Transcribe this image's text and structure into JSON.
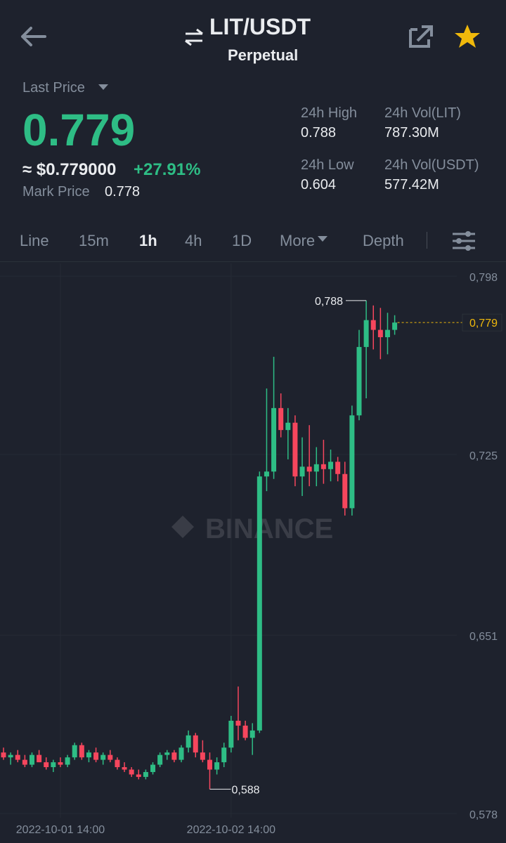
{
  "header": {
    "pair": "LIT/USDT",
    "subtitle": "Perpetual"
  },
  "summary": {
    "last_price_label": "Last Price",
    "last_price": "0.779",
    "usd_price": "≈ $0.779000",
    "change": "+27.91%",
    "mark_price_label": "Mark Price",
    "mark_price": "0.778",
    "stats": [
      {
        "label": "24h High",
        "value": "0.788"
      },
      {
        "label": "24h Vol(LIT)",
        "value": "787.30M"
      },
      {
        "label": "24h Low",
        "value": "0.604"
      },
      {
        "label": "24h Vol(USDT)",
        "value": "577.42M"
      }
    ]
  },
  "tabs": [
    "Line",
    "15m",
    "1h",
    "4h",
    "1D",
    "More",
    "Depth"
  ],
  "active_tab": "1h",
  "watermark": "BINANCE",
  "chart_data": {
    "type": "candlestick",
    "up_color": "#2ebd85",
    "down_color": "#f6465d",
    "categories": [
      null,
      null,
      null,
      null,
      null,
      null,
      null,
      null,
      "2022-10-01 14:00",
      null,
      null,
      null,
      null,
      null,
      null,
      null,
      null,
      null,
      null,
      null,
      null,
      null,
      null,
      null,
      null,
      null,
      null,
      null,
      null,
      null,
      null,
      null,
      "2022-10-02 14:00",
      null,
      null,
      null,
      null,
      null,
      null,
      null,
      null,
      null,
      null,
      null,
      null,
      null,
      null,
      null,
      null,
      null,
      null,
      null,
      null,
      null,
      null,
      null
    ],
    "open": [
      0.603,
      0.601,
      0.602,
      0.6,
      0.598,
      0.602,
      0.599,
      0.597,
      0.599,
      0.598,
      0.601,
      0.606,
      0.601,
      0.603,
      0.6,
      0.602,
      0.6,
      0.597,
      0.596,
      0.594,
      0.593,
      0.595,
      0.598,
      0.602,
      0.603,
      0.6,
      0.605,
      0.61,
      0.603,
      0.6,
      0.596,
      0.599,
      0.605,
      0.616,
      0.614,
      0.609,
      0.612,
      0.716,
      0.718,
      0.744,
      0.735,
      0.738,
      0.716,
      0.72,
      0.718,
      0.721,
      0.719,
      0.722,
      0.717,
      0.703,
      0.741,
      0.769,
      0.78,
      0.776,
      0.773,
      0.776
    ],
    "high": [
      0.605,
      0.603,
      0.604,
      0.602,
      0.603,
      0.604,
      0.601,
      0.6,
      0.601,
      0.602,
      0.607,
      0.607,
      0.604,
      0.605,
      0.603,
      0.604,
      0.601,
      0.599,
      0.597,
      0.596,
      0.596,
      0.599,
      0.603,
      0.604,
      0.604,
      0.606,
      0.612,
      0.611,
      0.608,
      0.603,
      0.601,
      0.607,
      0.618,
      0.63,
      0.616,
      0.615,
      0.718,
      0.752,
      0.765,
      0.75,
      0.744,
      0.741,
      0.732,
      0.737,
      0.728,
      0.731,
      0.727,
      0.724,
      0.722,
      0.745,
      0.776,
      0.788,
      0.786,
      0.785,
      0.783,
      0.782
    ],
    "low": [
      0.6,
      0.598,
      0.599,
      0.597,
      0.597,
      0.599,
      0.596,
      0.595,
      0.597,
      0.597,
      0.6,
      0.6,
      0.599,
      0.599,
      0.598,
      0.599,
      0.596,
      0.595,
      0.593,
      0.592,
      0.592,
      0.594,
      0.597,
      0.6,
      0.599,
      0.599,
      0.603,
      0.601,
      0.599,
      0.588,
      0.594,
      0.597,
      0.603,
      0.608,
      0.608,
      0.602,
      0.611,
      0.71,
      0.715,
      0.732,
      0.723,
      0.712,
      0.708,
      0.712,
      0.712,
      0.713,
      0.714,
      0.714,
      0.7,
      0.7,
      0.739,
      0.748,
      0.768,
      0.764,
      0.766,
      0.774
    ],
    "close": [
      0.601,
      0.602,
      0.6,
      0.598,
      0.602,
      0.599,
      0.597,
      0.599,
      0.598,
      0.601,
      0.606,
      0.601,
      0.603,
      0.6,
      0.602,
      0.6,
      0.597,
      0.596,
      0.594,
      0.593,
      0.595,
      0.598,
      0.602,
      0.603,
      0.6,
      0.605,
      0.61,
      0.603,
      0.6,
      0.596,
      0.599,
      0.605,
      0.616,
      0.614,
      0.609,
      0.612,
      0.716,
      0.718,
      0.744,
      0.735,
      0.738,
      0.716,
      0.72,
      0.718,
      0.721,
      0.719,
      0.722,
      0.717,
      0.703,
      0.741,
      0.769,
      0.78,
      0.776,
      0.773,
      0.776,
      0.779
    ],
    "ylim": [
      0.5763,
      0.8032
    ],
    "yticks": [
      {
        "value": 0.798,
        "label": "0,798"
      },
      {
        "value": 0.725,
        "label": "0,725"
      },
      {
        "value": 0.651,
        "label": "0,651"
      },
      {
        "value": 0.578,
        "label": "0,578"
      }
    ],
    "grid": true,
    "high_marker": {
      "value": 0.788,
      "label": "0,788"
    },
    "low_marker": {
      "value": 0.588,
      "label": "0,588"
    },
    "last_price_line": {
      "value": 0.779,
      "label": "0,779",
      "color": "#f0b90b"
    }
  }
}
